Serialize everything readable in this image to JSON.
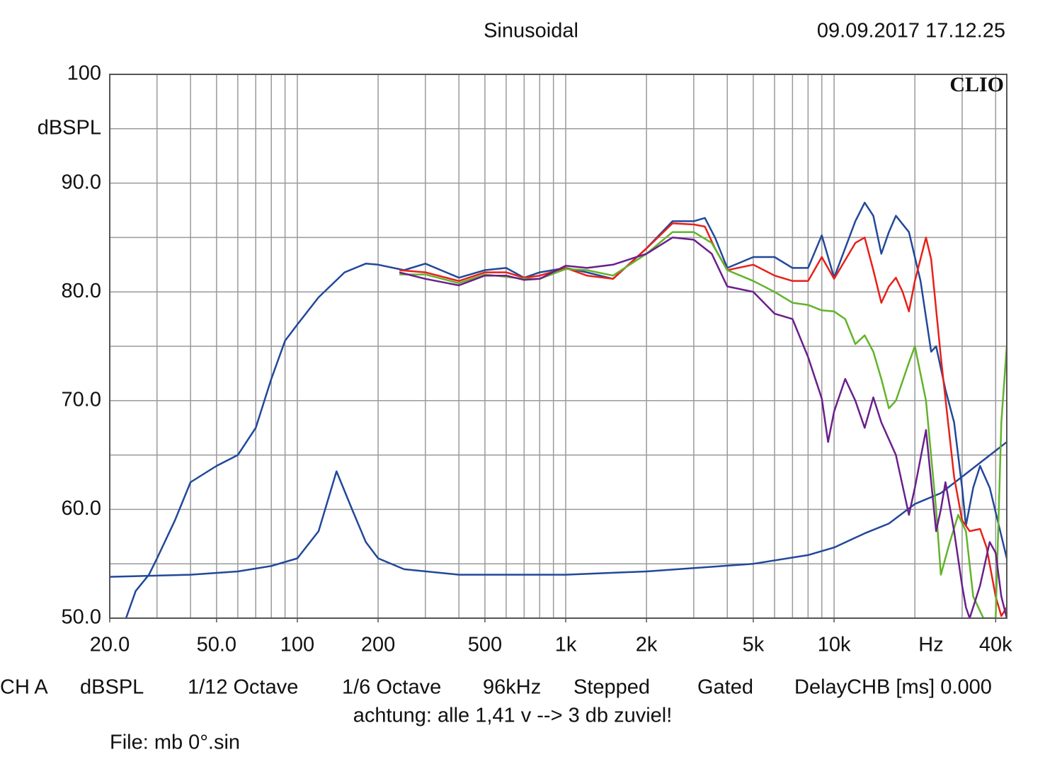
{
  "chart_data": {
    "type": "line",
    "title": "Sinusoidal",
    "timestamp": "09.09.2017 17.12.25",
    "brand": "CLIO",
    "y_label": "dBSPL",
    "x_label": "Hz",
    "xscale": "log",
    "grid": true,
    "xlim": [
      20,
      44000
    ],
    "ylim": [
      50,
      100
    ],
    "xticks": [
      {
        "value": 20,
        "label": "20.0"
      },
      {
        "value": 50,
        "label": "50.0"
      },
      100,
      200,
      500,
      {
        "value": 1000,
        "label": "1k"
      },
      {
        "value": 2000,
        "label": "2k"
      },
      {
        "value": 5000,
        "label": "5k"
      },
      {
        "value": 10000,
        "label": "10k"
      },
      {
        "value": 40000,
        "label": "40k"
      }
    ],
    "xgrid": [
      20,
      30,
      40,
      50,
      60,
      70,
      80,
      90,
      100,
      200,
      300,
      400,
      500,
      600,
      700,
      800,
      900,
      1000,
      2000,
      3000,
      4000,
      5000,
      6000,
      7000,
      8000,
      9000,
      10000,
      20000,
      30000,
      40000
    ],
    "yticks": [
      {
        "value": 50,
        "label": "50.0"
      },
      {
        "value": 60,
        "label": "60.0"
      },
      {
        "value": 70,
        "label": "70.0"
      },
      {
        "value": 80,
        "label": "80.0"
      },
      {
        "value": 90,
        "label": "90.0"
      },
      100
    ],
    "ygrid": [
      55,
      65,
      75,
      85,
      95
    ],
    "series": [
      {
        "color": "#22489a",
        "x": [
          23,
          25,
          28,
          30,
          35,
          40,
          50,
          60,
          70,
          80,
          90,
          100,
          120,
          150,
          180,
          200,
          250,
          300,
          400,
          500,
          600,
          700,
          800,
          1000,
          1200,
          1500,
          2000,
          2500,
          3000,
          3300,
          3600,
          4000,
          5000,
          6000,
          7000,
          8000,
          9000,
          10000,
          12000,
          13000,
          14000,
          15000,
          16000,
          17000,
          19000,
          21000,
          23000,
          24000,
          26000,
          28000,
          30000,
          31000,
          33000,
          35000,
          38000,
          44000
        ],
        "values": [
          50,
          52.5,
          54,
          55.5,
          59,
          62.5,
          64,
          65,
          67.5,
          72,
          75.5,
          77,
          79.5,
          81.8,
          82.6,
          82.5,
          82,
          82.6,
          81.3,
          82,
          82.2,
          81.3,
          81.8,
          82.2,
          81.8,
          81.2,
          84,
          86.5,
          86.5,
          86.8,
          85,
          82.2,
          83.2,
          83.2,
          82.2,
          82.2,
          85.2,
          81.3,
          86.5,
          88.2,
          87,
          83.5,
          85.5,
          87,
          85.5,
          81,
          74.5,
          75,
          71,
          68,
          62,
          58.5,
          62,
          64,
          62,
          55.5
        ]
      },
      {
        "color": "#22489a",
        "x": [
          20,
          40,
          60,
          80,
          100,
          120,
          140,
          160,
          180,
          200,
          250,
          400,
          1000,
          2000,
          3000,
          5000,
          8000,
          10000,
          13000,
          16000,
          20000,
          25000,
          30000,
          44000
        ],
        "values": [
          53.8,
          54,
          54.3,
          54.8,
          55.5,
          58,
          63.5,
          60,
          57,
          55.5,
          54.5,
          54,
          54,
          54.3,
          54.6,
          55,
          55.8,
          56.5,
          57.8,
          58.7,
          60.5,
          61.5,
          63,
          66.2
        ]
      },
      {
        "color": "#e8201a",
        "x": [
          240,
          300,
          400,
          500,
          600,
          700,
          800,
          1000,
          1200,
          1500,
          2000,
          2500,
          3000,
          3300,
          3600,
          4000,
          5000,
          6000,
          7000,
          8000,
          9000,
          10000,
          12000,
          13000,
          14000,
          15000,
          16000,
          17000,
          18000,
          19000,
          20000,
          22000,
          23000,
          25000,
          28000,
          30000,
          32000,
          35000,
          37000,
          40000,
          42000,
          44000
        ],
        "values": [
          82,
          81.8,
          81,
          81.8,
          81.8,
          81.3,
          81.5,
          82.2,
          81.5,
          81.2,
          84,
          86.3,
          86.2,
          86,
          84,
          82,
          82.5,
          81.5,
          81,
          81,
          83.2,
          81.2,
          84.5,
          85,
          82,
          79,
          80.5,
          81.3,
          80,
          78.2,
          81,
          85,
          83,
          74,
          63,
          59,
          58,
          58.2,
          56.5,
          52,
          50.2,
          51
        ]
      },
      {
        "color": "#62b32a",
        "x": [
          240,
          300,
          400,
          500,
          700,
          800,
          1000,
          1200,
          1500,
          2000,
          2500,
          3000,
          3500,
          4000,
          5000,
          6000,
          7000,
          8000,
          9000,
          10000,
          11000,
          12000,
          13000,
          14000,
          15000,
          16000,
          17000,
          19000,
          20000,
          22000,
          24000,
          25000,
          27000,
          29000,
          31000,
          33000,
          36000,
          40000,
          42000,
          44000
        ],
        "values": [
          81.6,
          81.6,
          80.8,
          81.6,
          81.2,
          81.2,
          82.1,
          82,
          81.5,
          83.5,
          85.5,
          85.5,
          84.5,
          82,
          81,
          80,
          79,
          78.8,
          78.3,
          78.2,
          77.5,
          75.2,
          76,
          74.5,
          72,
          69.3,
          70,
          73.5,
          75,
          70,
          60,
          54,
          57,
          59.5,
          58,
          52,
          50,
          50,
          68,
          75
        ]
      },
      {
        "color": "#6a1f8a",
        "x": [
          240,
          300,
          400,
          500,
          600,
          700,
          800,
          1000,
          1200,
          1500,
          2000,
          2500,
          3000,
          3500,
          4000,
          5000,
          6000,
          7000,
          8000,
          9000,
          9500,
          10000,
          11000,
          12000,
          13000,
          14000,
          15000,
          17000,
          19000,
          20000,
          22000,
          24000,
          25000,
          26000,
          28000,
          30000,
          31000,
          32000,
          35000,
          38000,
          40000,
          42000,
          44000
        ],
        "values": [
          81.8,
          81.2,
          80.6,
          81.5,
          81.5,
          81.1,
          81.2,
          82.4,
          82.2,
          82.5,
          83.5,
          85,
          84.8,
          83.5,
          80.5,
          80,
          78,
          77.5,
          74,
          70.2,
          66.2,
          69,
          72,
          70,
          67.5,
          70.3,
          68,
          65,
          59.5,
          62,
          67.3,
          58,
          60,
          62.5,
          58,
          53,
          51,
          50,
          53,
          57,
          56,
          52,
          50
        ]
      }
    ]
  },
  "footer": {
    "items": [
      "CH A",
      "dBSPL",
      "1/12 Octave",
      "1/6 Octave",
      "96kHz",
      "Stepped",
      "Gated",
      "DelayCHB [ms] 0.000"
    ],
    "note": "achtung: alle 1,41 v --> 3 db zuviel!",
    "file": "File: mb 0°.sin"
  }
}
